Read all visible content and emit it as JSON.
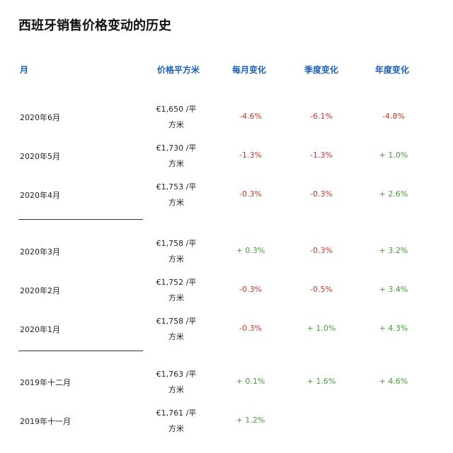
{
  "title": "西班牙销售价格变动的历史",
  "headers": {
    "month": "月",
    "price": "价格平方米",
    "monthly": "每月变化",
    "quarterly": "季度变化",
    "yearly": "年度变化"
  },
  "rows": [
    {
      "month": "2020年6月",
      "price_line1": "€1,650 /平",
      "price_line2": "方米",
      "monthly": "-4.6%",
      "quarterly": "-6.1%",
      "yearly": "-4.8%"
    },
    {
      "month": "2020年5月",
      "price_line1": "€1,730 /平",
      "price_line2": "方米",
      "monthly": "-1.3%",
      "quarterly": "-1.3%",
      "yearly": "+ 1.0%"
    },
    {
      "month": "2020年4月",
      "price_line1": "€1,753 /平",
      "price_line2": "方米",
      "monthly": "-0.3%",
      "quarterly": "-0.3%",
      "yearly": "+ 2.6%"
    },
    {
      "month": "2020年3月",
      "price_line1": "€1,758 /平",
      "price_line2": "方米",
      "monthly": "+ 0.3%",
      "quarterly": "-0.3%",
      "yearly": "+ 3.2%"
    },
    {
      "month": "2020年2月",
      "price_line1": "€1,752 /平",
      "price_line2": "方米",
      "monthly": "-0.3%",
      "quarterly": "-0.5%",
      "yearly": "+ 3.4%"
    },
    {
      "month": "2020年1月",
      "price_line1": "€1,758 /平",
      "price_line2": "方米",
      "monthly": "-0.3%",
      "quarterly": "+ 1.0%",
      "yearly": "+ 4.3%"
    },
    {
      "month": "2019年十二月",
      "price_line1": "€1,763 /平",
      "price_line2": "方米",
      "monthly": "+ 0.1%",
      "quarterly": "+ 1.6%",
      "yearly": "+ 4.6%"
    },
    {
      "month": "2019年十一月",
      "price_line1": "€1,761 /平",
      "price_line2": "方米",
      "monthly": "+ 1.2%",
      "quarterly": "",
      "yearly": ""
    }
  ],
  "colors": {
    "negative": "#c0392b",
    "positive": "#4a9a3a",
    "header": "#1a5fb4"
  }
}
